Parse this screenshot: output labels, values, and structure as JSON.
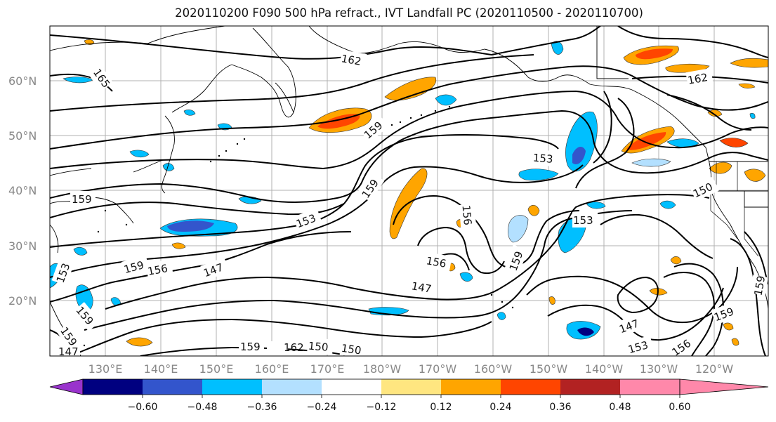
{
  "title": "2020110200 F090 500 hPa refract., IVT Landfall PC (2020110500 - 2020110700)",
  "lat_labels": [
    "60°N",
    "50°N",
    "40°N",
    "30°N",
    "20°N"
  ],
  "lon_labels": [
    "130°E",
    "140°E",
    "150°E",
    "160°E",
    "170°E",
    "180°W",
    "170°W",
    "160°W",
    "150°W",
    "140°W",
    "130°W",
    "120°W"
  ],
  "colorbar": {
    "ticks": [
      "−0.60",
      "−0.48",
      "−0.36",
      "−0.24",
      "−0.12",
      "0.12",
      "0.24",
      "0.36",
      "0.48",
      "0.60"
    ],
    "colors": [
      "#9933cc",
      "#000080",
      "#3355cc",
      "#00bfff",
      "#b3e0ff",
      "#ffffff",
      "#ffe680",
      "#ffa500",
      "#ff4500",
      "#b22222",
      "#ff88aa"
    ]
  },
  "contour_labels": [
    "165",
    "162",
    "159",
    "159",
    "159",
    "153",
    "159",
    "156",
    "147",
    "153",
    "162",
    "159",
    "156",
    "147",
    "153",
    "159",
    "159",
    "150",
    "153",
    "156",
    "150",
    "159",
    "162",
    "159",
    "147",
    "153",
    "156",
    "159",
    "150",
    "147"
  ]
}
